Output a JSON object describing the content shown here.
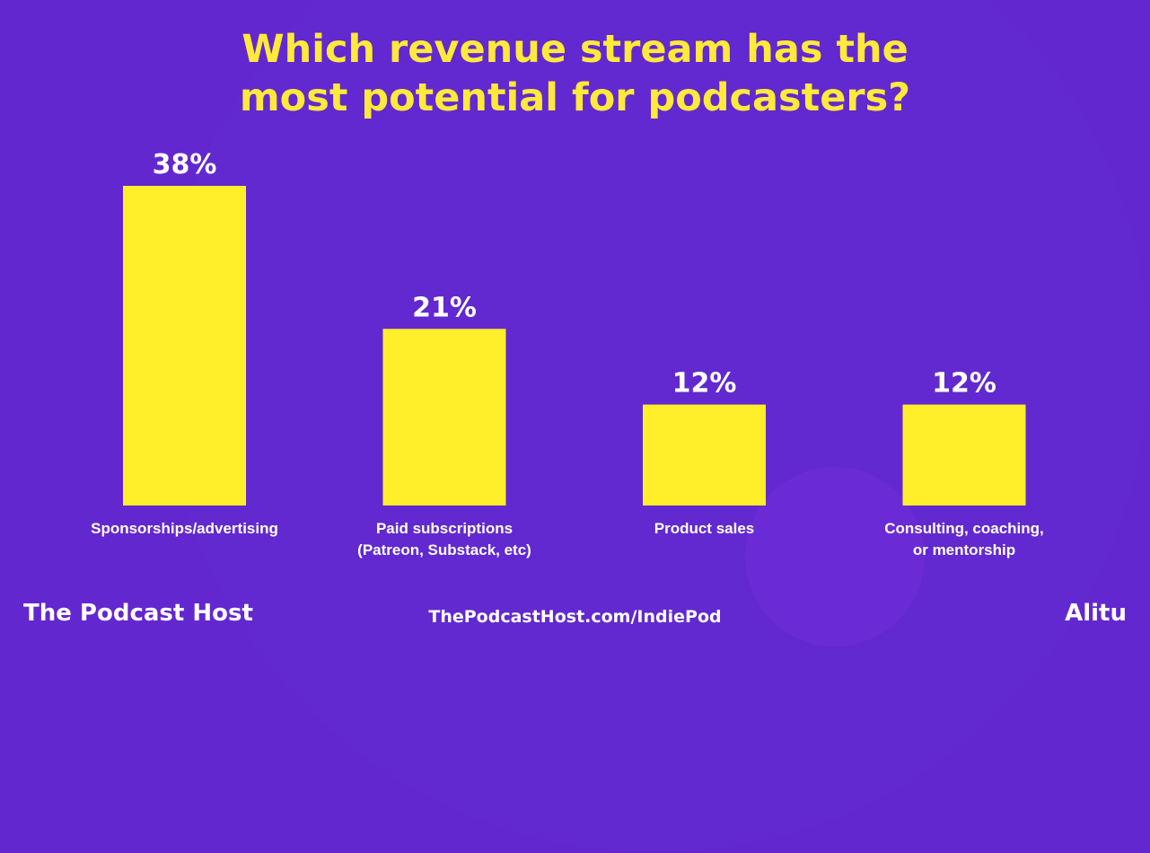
{
  "chart_data": {
    "type": "bar",
    "title": "Which revenue stream has the most potential for podcasters?",
    "categories": [
      [
        "Sponsorships/advertising"
      ],
      [
        "Paid subscriptions",
        "(Patreon, Substack, etc)"
      ],
      [
        "Product sales"
      ],
      [
        "Consulting, coaching,",
        "or mentorship"
      ]
    ],
    "values": [
      38,
      21,
      12,
      12
    ],
    "data_labels": [
      "38%",
      "21%",
      "12%",
      "12%"
    ],
    "unit": "%",
    "ylim": [
      0,
      38
    ],
    "grid": false,
    "colors": {
      "bar": "#ffee2a",
      "background": "#6327d0",
      "title": "#ffe93a",
      "text": "#ffffff"
    }
  },
  "footer": {
    "brand": "The Podcast Host",
    "url": "ThePodcastHost.com/IndiePod",
    "partner": "Alitu"
  }
}
